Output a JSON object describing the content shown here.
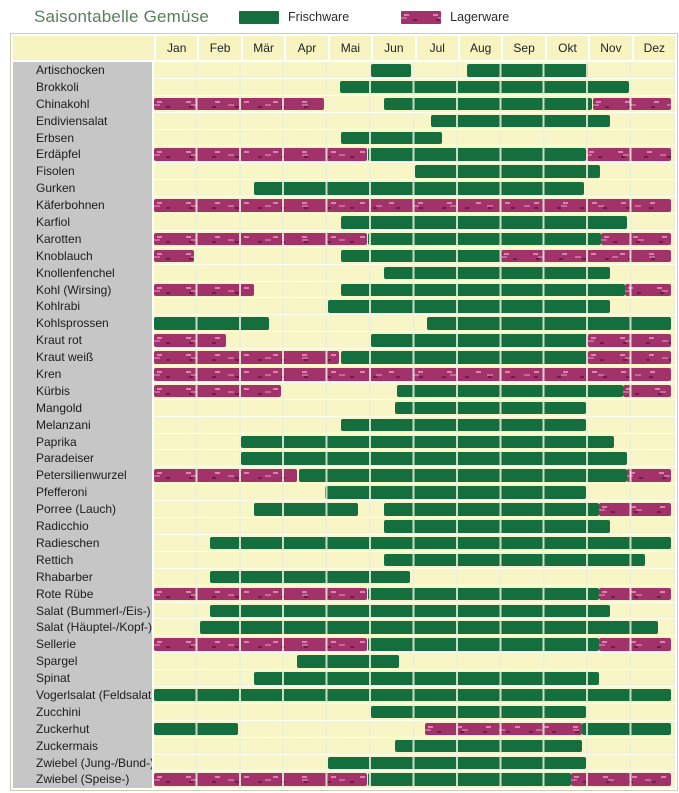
{
  "header": {
    "title": "Saisontabelle Gemüse"
  },
  "legend": {
    "frischware_label": "Frischware",
    "lagerware_label": "Lagerware"
  },
  "colors": {
    "frischware": "#156e3e",
    "lagerware": "#a1336a",
    "cell_background": "#f8f6c6",
    "header_cell_background": "#f7f4c2",
    "label_column_background": "#c6c6c6",
    "title_green": "#57805a"
  },
  "chart_data": {
    "type": "table",
    "title": "Saisontabelle Gemüse",
    "subtitle": "Seasonal availability per month; bar positions in month units (0 = start of Jan, 12 = end of Dez)",
    "legend_entries": [
      {
        "label": "Frischware",
        "color": "#156e3e",
        "style": "solid green bar"
      },
      {
        "label": "Lagerware",
        "color": "#a1336a",
        "style": "purple bar with dash texture"
      }
    ],
    "legend_position": "top",
    "grid": true,
    "months": [
      "Jan",
      "Feb",
      "Mär",
      "Apr",
      "Mai",
      "Jun",
      "Jul",
      "Aug",
      "Sep",
      "Okt",
      "Nov",
      "Dez"
    ],
    "rows": [
      {
        "label": "Artischocken",
        "bars": [
          {
            "kind": "frischware",
            "start": 5.0,
            "end": 5.93
          },
          {
            "kind": "frischware",
            "start": 7.2,
            "end": 10.0
          }
        ]
      },
      {
        "label": "Brokkoli",
        "bars": [
          {
            "kind": "frischware",
            "start": 4.28,
            "end": 10.95
          }
        ]
      },
      {
        "label": "Chinakohl",
        "bars": [
          {
            "kind": "lagerware",
            "start": 0,
            "end": 3.92
          },
          {
            "kind": "frischware",
            "start": 5.3,
            "end": 10.1
          },
          {
            "kind": "lagerware",
            "start": 10.1,
            "end": 11.9
          }
        ]
      },
      {
        "label": "Endiviensalat",
        "bars": [
          {
            "kind": "frischware",
            "start": 6.38,
            "end": 10.5
          }
        ]
      },
      {
        "label": "Erbsen",
        "bars": [
          {
            "kind": "frischware",
            "start": 4.3,
            "end": 6.63
          }
        ]
      },
      {
        "label": "Erdäpfel",
        "bars": [
          {
            "kind": "lagerware",
            "start": 0,
            "end": 4.9
          },
          {
            "kind": "frischware",
            "start": 4.93,
            "end": 9.95
          },
          {
            "kind": "lagerware",
            "start": 9.95,
            "end": 11.9
          }
        ]
      },
      {
        "label": "Fisolen",
        "bars": [
          {
            "kind": "frischware",
            "start": 6.0,
            "end": 10.28
          }
        ]
      },
      {
        "label": "Gurken",
        "bars": [
          {
            "kind": "frischware",
            "start": 2.3,
            "end": 9.9
          }
        ]
      },
      {
        "label": "Käferbohnen",
        "bars": [
          {
            "kind": "lagerware",
            "start": 0,
            "end": 11.9
          }
        ]
      },
      {
        "label": "Karfiol",
        "bars": [
          {
            "kind": "frischware",
            "start": 4.3,
            "end": 10.9
          }
        ]
      },
      {
        "label": "Karotten",
        "bars": [
          {
            "kind": "lagerware",
            "start": 0,
            "end": 4.9
          },
          {
            "kind": "frischware",
            "start": 4.93,
            "end": 10.3
          },
          {
            "kind": "lagerware",
            "start": 10.3,
            "end": 11.9
          }
        ]
      },
      {
        "label": "Knoblauch",
        "bars": [
          {
            "kind": "lagerware",
            "start": 0,
            "end": 0.92
          },
          {
            "kind": "frischware",
            "start": 4.3,
            "end": 8.0
          },
          {
            "kind": "lagerware",
            "start": 8.0,
            "end": 11.9
          }
        ]
      },
      {
        "label": "Knollenfenchel",
        "bars": [
          {
            "kind": "frischware",
            "start": 5.3,
            "end": 10.5
          }
        ]
      },
      {
        "label": "Kohl (Wirsing)",
        "bars": [
          {
            "kind": "lagerware",
            "start": 0,
            "end": 2.3
          },
          {
            "kind": "frischware",
            "start": 4.3,
            "end": 10.85
          },
          {
            "kind": "lagerware",
            "start": 10.85,
            "end": 11.9
          }
        ]
      },
      {
        "label": "Kohlrabi",
        "bars": [
          {
            "kind": "frischware",
            "start": 4.0,
            "end": 10.5
          }
        ]
      },
      {
        "label": "Kohlsprossen",
        "bars": [
          {
            "kind": "frischware",
            "start": 0,
            "end": 2.64
          },
          {
            "kind": "frischware",
            "start": 6.28,
            "end": 11.9
          }
        ]
      },
      {
        "label": "Kraut rot",
        "bars": [
          {
            "kind": "lagerware",
            "start": 0,
            "end": 1.66
          },
          {
            "kind": "frischware",
            "start": 5.0,
            "end": 10.0
          },
          {
            "kind": "lagerware",
            "start": 10.0,
            "end": 11.9
          }
        ]
      },
      {
        "label": "Kraut weiß",
        "bars": [
          {
            "kind": "lagerware",
            "start": 0,
            "end": 4.25
          },
          {
            "kind": "frischware",
            "start": 4.3,
            "end": 10.0
          },
          {
            "kind": "lagerware",
            "start": 10.0,
            "end": 11.9
          }
        ]
      },
      {
        "label": "Kren",
        "bars": [
          {
            "kind": "lagerware",
            "start": 0,
            "end": 11.9
          }
        ]
      },
      {
        "label": "Kürbis",
        "bars": [
          {
            "kind": "lagerware",
            "start": 0,
            "end": 2.93
          },
          {
            "kind": "frischware",
            "start": 5.6,
            "end": 10.8
          },
          {
            "kind": "lagerware",
            "start": 10.8,
            "end": 11.9
          }
        ]
      },
      {
        "label": "Mangold",
        "bars": [
          {
            "kind": "frischware",
            "start": 5.55,
            "end": 9.95
          }
        ]
      },
      {
        "label": "Melanzani",
        "bars": [
          {
            "kind": "frischware",
            "start": 4.3,
            "end": 9.95
          }
        ]
      },
      {
        "label": "Paprika",
        "bars": [
          {
            "kind": "frischware",
            "start": 2.0,
            "end": 10.6
          }
        ]
      },
      {
        "label": "Paradeiser",
        "bars": [
          {
            "kind": "frischware",
            "start": 2.0,
            "end": 10.9
          }
        ]
      },
      {
        "label": "Petersilienwurzel",
        "bars": [
          {
            "kind": "lagerware",
            "start": 0,
            "end": 3.3
          },
          {
            "kind": "frischware",
            "start": 3.35,
            "end": 10.9
          },
          {
            "kind": "lagerware",
            "start": 10.9,
            "end": 11.9
          }
        ]
      },
      {
        "label": "Pfefferoni",
        "bars": [
          {
            "kind": "frischware",
            "start": 3.95,
            "end": 9.95
          }
        ]
      },
      {
        "label": "Porree (Lauch)",
        "bars": [
          {
            "kind": "frischware",
            "start": 2.3,
            "end": 4.7
          },
          {
            "kind": "frischware",
            "start": 5.3,
            "end": 10.25
          },
          {
            "kind": "lagerware",
            "start": 10.25,
            "end": 11.9
          }
        ]
      },
      {
        "label": "Radicchio",
        "bars": [
          {
            "kind": "frischware",
            "start": 5.3,
            "end": 10.5
          }
        ]
      },
      {
        "label": "Radieschen",
        "bars": [
          {
            "kind": "frischware",
            "start": 1.3,
            "end": 11.9
          }
        ]
      },
      {
        "label": "Rettich",
        "bars": [
          {
            "kind": "frischware",
            "start": 5.3,
            "end": 11.3
          }
        ]
      },
      {
        "label": "Rhabarber",
        "bars": [
          {
            "kind": "frischware",
            "start": 1.3,
            "end": 5.9
          }
        ]
      },
      {
        "label": "Rote Rübe",
        "bars": [
          {
            "kind": "lagerware",
            "start": 0,
            "end": 4.9
          },
          {
            "kind": "frischware",
            "start": 4.93,
            "end": 10.25
          },
          {
            "kind": "lagerware",
            "start": 10.25,
            "end": 11.9
          }
        ]
      },
      {
        "label": "Salat (Bummerl-/Eis-)",
        "bars": [
          {
            "kind": "frischware",
            "start": 1.3,
            "end": 10.5
          }
        ]
      },
      {
        "label": "Salat (Häuptel-/Kopf-)",
        "bars": [
          {
            "kind": "frischware",
            "start": 1.05,
            "end": 11.6
          }
        ]
      },
      {
        "label": "Sellerie",
        "bars": [
          {
            "kind": "lagerware",
            "start": 0,
            "end": 4.9
          },
          {
            "kind": "frischware",
            "start": 4.93,
            "end": 10.25
          },
          {
            "kind": "lagerware",
            "start": 10.25,
            "end": 11.9
          }
        ]
      },
      {
        "label": "Spargel",
        "bars": [
          {
            "kind": "frischware",
            "start": 3.3,
            "end": 5.65
          }
        ]
      },
      {
        "label": "Spinat",
        "bars": [
          {
            "kind": "frischware",
            "start": 2.3,
            "end": 10.25
          }
        ]
      },
      {
        "label": "Vogerlsalat (Feldsalat)",
        "bars": [
          {
            "kind": "frischware",
            "start": 0,
            "end": 11.9
          }
        ]
      },
      {
        "label": "Zucchini",
        "bars": [
          {
            "kind": "frischware",
            "start": 5.0,
            "end": 9.95
          }
        ]
      },
      {
        "label": "Zuckerhut",
        "bars": [
          {
            "kind": "frischware",
            "start": 0,
            "end": 1.94
          },
          {
            "kind": "lagerware",
            "start": 6.25,
            "end": 9.85
          },
          {
            "kind": "frischware",
            "start": 9.85,
            "end": 11.9
          }
        ]
      },
      {
        "label": "Zuckermais",
        "bars": [
          {
            "kind": "frischware",
            "start": 5.55,
            "end": 9.85
          }
        ]
      },
      {
        "label": "Zwiebel (Jung-/Bund-)",
        "bars": [
          {
            "kind": "frischware",
            "start": 4.0,
            "end": 9.95
          }
        ]
      },
      {
        "label": "Zwiebel (Speise-)",
        "bars": [
          {
            "kind": "lagerware",
            "start": 0,
            "end": 4.9
          },
          {
            "kind": "frischware",
            "start": 4.93,
            "end": 9.6
          },
          {
            "kind": "lagerware",
            "start": 9.6,
            "end": 11.9
          }
        ]
      }
    ]
  }
}
